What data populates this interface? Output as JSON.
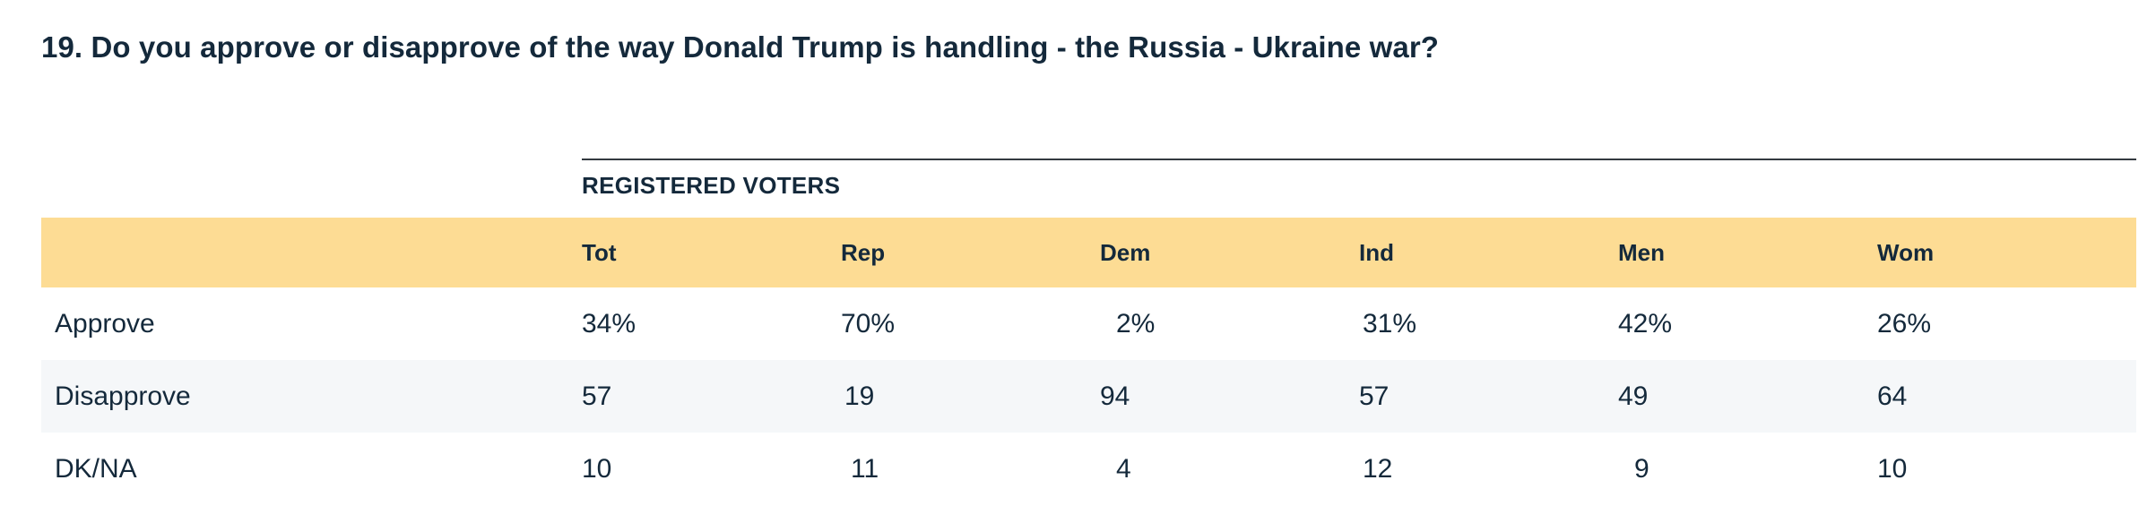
{
  "question": {
    "title": "19. Do you approve or disapprove of the way Donald Trump is handling - the Russia - Ukraine war?"
  },
  "table": {
    "group_label": "REGISTERED VOTERS",
    "columns": [
      "Tot",
      "Rep",
      "Dem",
      "Ind",
      "Men",
      "Wom"
    ],
    "rows": [
      {
        "label": "Approve",
        "values": [
          "34%",
          "70%",
          "2%",
          "31%",
          "42%",
          "26%"
        ]
      },
      {
        "label": "Disapprove",
        "values": [
          "57",
          "19",
          "94",
          "57",
          "49",
          "64"
        ]
      },
      {
        "label": "DK/NA",
        "values": [
          "10",
          "11",
          "4",
          "12",
          "9",
          "10"
        ]
      }
    ]
  },
  "colors": {
    "header_background": "#fddc94",
    "shaded_row_background": "#f5f7f9",
    "text": "#14293b"
  }
}
